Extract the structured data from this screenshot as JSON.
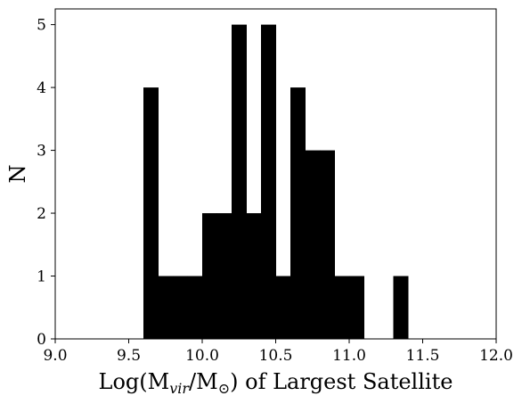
{
  "chart_data": {
    "type": "bar",
    "title": "",
    "xlabel": "Log(M_vir/M_⊙) of Largest Satellite",
    "xlabel_parts": {
      "pre": "Log(M",
      "sub": "vir",
      "mid": "/M",
      "sub2": "⊙",
      "post": ") of Largest Satellite"
    },
    "ylabel": "N",
    "xlim": [
      9.0,
      12.0
    ],
    "ylim": [
      0,
      5.25
    ],
    "bin_width": 0.1,
    "bins": [
      {
        "x0": 9.6,
        "x1": 9.7,
        "count": 4
      },
      {
        "x0": 9.7,
        "x1": 9.8,
        "count": 1
      },
      {
        "x0": 9.8,
        "x1": 9.9,
        "count": 1
      },
      {
        "x0": 9.9,
        "x1": 10.0,
        "count": 1
      },
      {
        "x0": 10.0,
        "x1": 10.1,
        "count": 2
      },
      {
        "x0": 10.1,
        "x1": 10.2,
        "count": 2
      },
      {
        "x0": 10.2,
        "x1": 10.3,
        "count": 5
      },
      {
        "x0": 10.3,
        "x1": 10.4,
        "count": 2
      },
      {
        "x0": 10.4,
        "x1": 10.5,
        "count": 5
      },
      {
        "x0": 10.5,
        "x1": 10.6,
        "count": 1
      },
      {
        "x0": 10.6,
        "x1": 10.7,
        "count": 4
      },
      {
        "x0": 10.7,
        "x1": 10.8,
        "count": 3
      },
      {
        "x0": 10.8,
        "x1": 10.9,
        "count": 3
      },
      {
        "x0": 10.9,
        "x1": 11.0,
        "count": 1
      },
      {
        "x0": 11.0,
        "x1": 11.1,
        "count": 1
      },
      {
        "x0": 11.3,
        "x1": 11.4,
        "count": 1
      }
    ],
    "xticks": [
      "9.0",
      "9.5",
      "10.0",
      "10.5",
      "11.0",
      "11.5",
      "12.0"
    ],
    "xtick_values": [
      9.0,
      9.5,
      10.0,
      10.5,
      11.0,
      11.5,
      12.0
    ],
    "yticks": [
      "0",
      "1",
      "2",
      "3",
      "4",
      "5"
    ],
    "ytick_values": [
      0,
      1,
      2,
      3,
      4,
      5
    ],
    "bar_color": "#000000",
    "grid": false,
    "legend": "none"
  }
}
